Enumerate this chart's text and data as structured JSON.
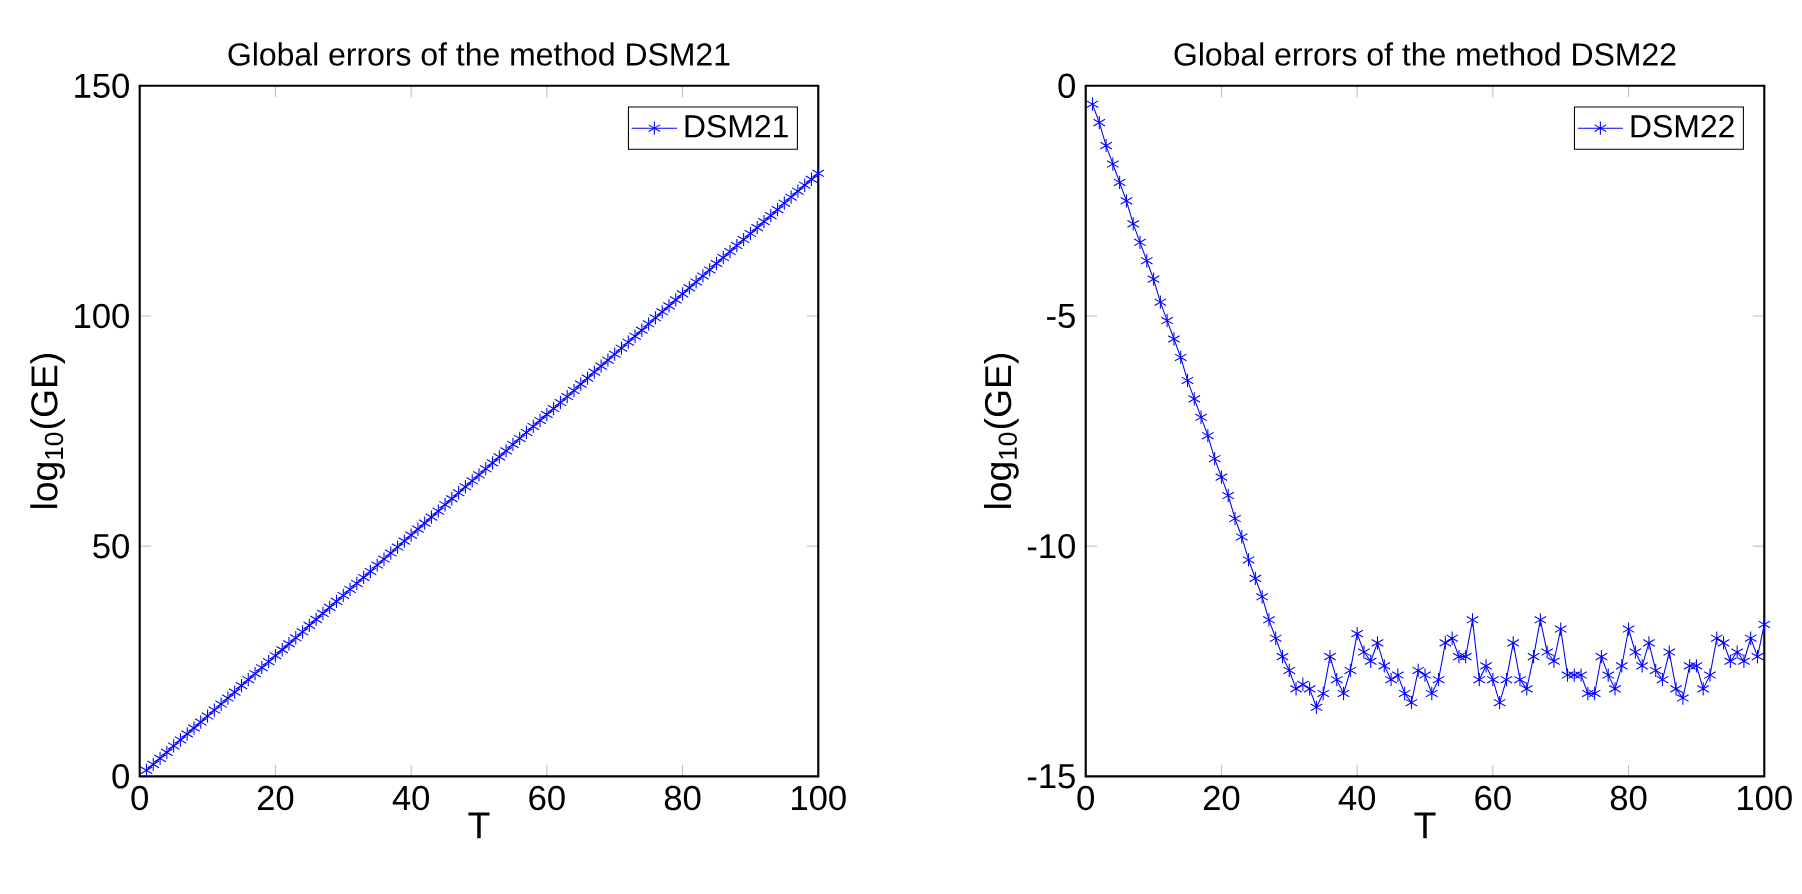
{
  "chart_data": [
    {
      "type": "line",
      "title": "Global errors of the method DSM21",
      "xlabel": "T",
      "ylabel": "log$_{10}$(GE)",
      "x": [
        1,
        2,
        3,
        4,
        5,
        6,
        7,
        8,
        9,
        10,
        11,
        12,
        13,
        14,
        15,
        16,
        17,
        18,
        19,
        20,
        21,
        22,
        23,
        24,
        25,
        26,
        27,
        28,
        29,
        30,
        31,
        32,
        33,
        34,
        35,
        36,
        37,
        38,
        39,
        40,
        41,
        42,
        43,
        44,
        45,
        46,
        47,
        48,
        49,
        50,
        51,
        52,
        53,
        54,
        55,
        56,
        57,
        58,
        59,
        60,
        61,
        62,
        63,
        64,
        65,
        66,
        67,
        68,
        69,
        70,
        71,
        72,
        73,
        74,
        75,
        76,
        77,
        78,
        79,
        80,
        81,
        82,
        83,
        84,
        85,
        86,
        87,
        88,
        89,
        90,
        91,
        92,
        93,
        94,
        95,
        96,
        97,
        98,
        99,
        100
      ],
      "series": [
        {
          "name": "DSM21",
          "color": "#0000ff",
          "values": [
            1.3,
            2.6,
            3.9,
            5.2,
            6.6,
            7.9,
            9.2,
            10.5,
            11.8,
            13.1,
            14.4,
            15.7,
            17.0,
            18.3,
            19.7,
            21.0,
            22.3,
            23.6,
            24.9,
            26.2,
            27.5,
            28.8,
            30.1,
            31.4,
            32.8,
            34.1,
            35.4,
            36.7,
            38.0,
            39.3,
            40.6,
            41.9,
            43.2,
            44.5,
            45.9,
            47.2,
            48.5,
            49.8,
            51.1,
            52.4,
            53.7,
            55.0,
            56.3,
            57.6,
            59.0,
            60.3,
            61.6,
            62.9,
            64.2,
            65.5,
            66.8,
            68.1,
            69.4,
            70.7,
            72.1,
            73.4,
            74.7,
            76.0,
            77.3,
            78.6,
            79.9,
            81.2,
            82.5,
            83.8,
            85.2,
            86.5,
            87.8,
            89.1,
            90.4,
            91.7,
            93.0,
            94.3,
            95.6,
            96.9,
            98.3,
            99.6,
            100.9,
            102.2,
            103.5,
            104.8,
            106.1,
            107.4,
            108.7,
            110.0,
            111.4,
            112.7,
            114.0,
            115.3,
            116.6,
            117.9,
            119.2,
            120.5,
            121.8,
            123.1,
            124.5,
            125.8,
            127.1,
            128.4,
            129.7,
            131.0
          ]
        }
      ],
      "xlim": [
        0,
        100
      ],
      "xticks": [
        0,
        20,
        40,
        60,
        80,
        100
      ],
      "ylim": [
        0,
        150
      ],
      "yticks": [
        0,
        50,
        100,
        150
      ],
      "legend": "top right",
      "marker": "cross",
      "line_style": "solid",
      "grid": false
    },
    {
      "type": "line",
      "title": "Global errors of the method DSM22",
      "xlabel": "T",
      "ylabel": "log$_{10}$(GE)",
      "x": [
        1,
        2,
        3,
        4,
        5,
        6,
        7,
        8,
        9,
        10,
        11,
        12,
        13,
        14,
        15,
        16,
        17,
        18,
        19,
        20,
        21,
        22,
        23,
        24,
        25,
        26,
        27,
        28,
        29,
        30,
        31,
        32,
        33,
        34,
        35,
        36,
        37,
        38,
        39,
        40,
        41,
        42,
        43,
        44,
        45,
        46,
        47,
        48,
        49,
        50,
        51,
        52,
        53,
        54,
        55,
        56,
        57,
        58,
        59,
        60,
        61,
        62,
        63,
        64,
        65,
        66,
        67,
        68,
        69,
        70,
        71,
        72,
        73,
        74,
        75,
        76,
        77,
        78,
        79,
        80,
        81,
        82,
        83,
        84,
        85,
        86,
        87,
        88,
        89,
        90,
        91,
        92,
        93,
        94,
        95,
        96,
        97,
        98,
        99,
        100
      ],
      "series": [
        {
          "name": "DSM22",
          "color": "#0000ff",
          "values": [
            -0.4,
            -0.8,
            -1.3,
            -1.7,
            -2.1,
            -2.5,
            -3.0,
            -3.4,
            -3.8,
            -4.2,
            -4.7,
            -5.1,
            -5.5,
            -5.9,
            -6.4,
            -6.8,
            -7.2,
            -7.6,
            -8.1,
            -8.5,
            -8.9,
            -9.4,
            -9.8,
            -10.3,
            -10.7,
            -11.1,
            -11.6,
            -12.0,
            -12.4,
            -12.7,
            -13.1,
            -13.0,
            -13.1,
            -13.5,
            -13.2,
            -12.4,
            -12.9,
            -13.2,
            -12.7,
            -11.9,
            -12.3,
            -12.5,
            -12.1,
            -12.6,
            -12.9,
            -12.8,
            -13.2,
            -13.4,
            -12.7,
            -12.8,
            -13.2,
            -12.9,
            -12.1,
            -12.0,
            -12.4,
            -12.4,
            -11.6,
            -12.9,
            -12.6,
            -12.9,
            -13.4,
            -12.9,
            -12.1,
            -12.9,
            -13.1,
            -12.4,
            -11.6,
            -12.3,
            -12.5,
            -11.8,
            -12.8,
            -12.8,
            -12.8,
            -13.2,
            -13.2,
            -12.4,
            -12.8,
            -13.1,
            -12.6,
            -11.8,
            -12.3,
            -12.6,
            -12.1,
            -12.7,
            -12.9,
            -12.3,
            -13.1,
            -13.3,
            -12.6,
            -12.6,
            -13.1,
            -12.8,
            -12.0,
            -12.1,
            -12.5,
            -12.3,
            -12.5,
            -12.0,
            -12.4,
            -11.7
          ]
        }
      ],
      "xlim": [
        0,
        100
      ],
      "xticks": [
        0,
        20,
        40,
        60,
        80,
        100
      ],
      "ylim": [
        -15,
        0
      ],
      "yticks": [
        -15,
        -10,
        -5,
        0
      ],
      "legend": "top right",
      "marker": "cross",
      "line_style": "solid",
      "grid": false
    }
  ]
}
